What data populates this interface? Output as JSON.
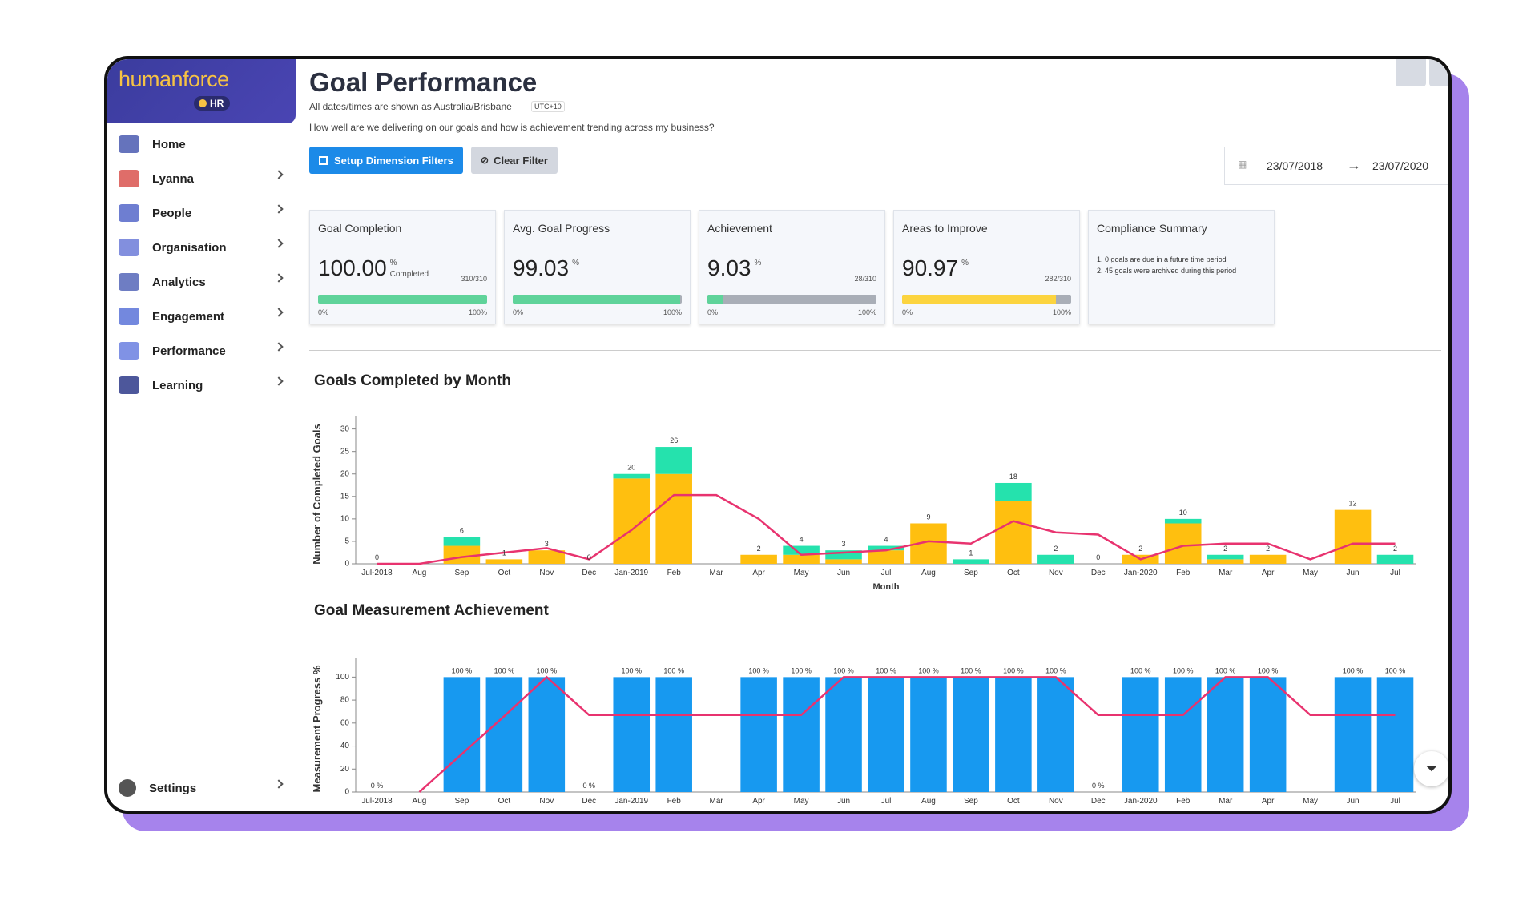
{
  "sidebar": {
    "brand": "humanforce",
    "badge": "HR",
    "nav": [
      "Home",
      "Lyanna",
      "People",
      "Organisation",
      "Analytics",
      "Engagement",
      "Performance",
      "Learning"
    ],
    "settings": "Settings"
  },
  "header": {
    "title": "Goal Performance",
    "timezone": "All dates/times are shown as Australia/Brisbane",
    "utc": "UTC+10",
    "question": "How well are we delivering on our goals and how is achievement trending across my business?",
    "buttons": [
      "Setup Dimension Filters",
      "Clear Filter"
    ],
    "date_from": "23/07/2018",
    "date_to": "23/07/2020"
  },
  "kpis": [
    {
      "title": "Goal Completion",
      "value": 100,
      "value_label": "100.00",
      "unit": "%",
      "sub": "Completed",
      "ratio": "310/310",
      "min_label": "0%",
      "max_label": "100%",
      "color": "#5fd39a"
    },
    {
      "title": "Avg. Goal Progress",
      "value": 99.03,
      "unit": "%",
      "min_label": "0%",
      "max_label": "100%",
      "color": "#5fd39a"
    },
    {
      "title": "Achievement",
      "value": 9.03,
      "unit": "%",
      "ratio": "28/310",
      "min_label": "0%",
      "max_label": "100%",
      "color": "#5fd39a"
    },
    {
      "title": "Areas to Improve",
      "value": 90.97,
      "unit": "%",
      "ratio": "282/310",
      "min_label": "0%",
      "max_label": "100%",
      "color": "#fcd43f"
    }
  ],
  "compliance": {
    "title": "Compliance Summary",
    "items": [
      "1. 0 goals are due in a future time period",
      "2. 45 goals were archived during this period"
    ]
  },
  "charts": [
    {
      "type": "bar",
      "title": "Goals Completed by Month",
      "x_label": "Month",
      "y_label": "Number of Completed Goals",
      "categories": [
        "Jul-2018",
        "Aug",
        "Sep",
        "Oct",
        "Nov",
        "Dec",
        "Jan-2019",
        "Feb",
        "Mar",
        "Apr",
        "May",
        "Jun",
        "Jul",
        "Aug",
        "Sep",
        "Oct",
        "Nov",
        "Dec",
        "Jan-2020",
        "Feb",
        "Mar",
        "Apr",
        "May",
        "Jun",
        "Jul"
      ],
      "series": [
        {
          "color": "#ffbf0f",
          "values": [
            0,
            null,
            4,
            1,
            3,
            0,
            19,
            20,
            null,
            2,
            2,
            1,
            3,
            9,
            0,
            14,
            0,
            0,
            2,
            9,
            1,
            2,
            null,
            12,
            0
          ]
        },
        {
          "color": "#25e2ad",
          "values": [
            0,
            null,
            2,
            0,
            0,
            0,
            1,
            6,
            null,
            0,
            2,
            2,
            1,
            0,
            1,
            4,
            2,
            0,
            0,
            1,
            1,
            0,
            null,
            0,
            2
          ]
        },
        {
          "type": "line",
          "color": "#e8336f",
          "values": [
            0,
            0,
            1.5,
            2.5,
            3.5,
            1,
            7.5,
            15.3,
            15.3,
            10,
            2,
            2.5,
            3,
            5,
            4.5,
            9.5,
            7,
            6.5,
            1,
            4,
            4.5,
            4.5,
            1,
            4.5,
            4.5
          ]
        }
      ],
      "totals": [
        0,
        null,
        6,
        1,
        3,
        0,
        20,
        26,
        null,
        2,
        4,
        3,
        4,
        9,
        1,
        18,
        2,
        0,
        2,
        10,
        2,
        2,
        null,
        12,
        2
      ],
      "ylim": [
        0,
        31
      ],
      "yticks": [
        0,
        5,
        10,
        15,
        20,
        25,
        30
      ]
    },
    {
      "type": "bar",
      "title": "Goal Measurement Achievement",
      "y_label": "Measurement Progress %",
      "categories": [
        "Jul-2018",
        "Aug",
        "Sep",
        "Oct",
        "Nov",
        "Dec",
        "Jan-2019",
        "Feb",
        "Mar",
        "Apr",
        "May",
        "Jun",
        "Jul",
        "Aug",
        "Sep",
        "Oct",
        "Nov",
        "Dec",
        "Jan-2020",
        "Feb",
        "Mar",
        "Apr",
        "May",
        "Jun",
        "Jul"
      ],
      "series": [
        {
          "color": "#1799f0",
          "values": [
            0,
            null,
            100,
            100,
            100,
            0,
            100,
            100,
            null,
            100,
            100,
            100,
            100,
            100,
            100,
            100,
            100,
            0,
            100,
            100,
            100,
            100,
            null,
            100,
            100
          ],
          "value_labels": [
            "0 %",
            null,
            "100 %",
            "100 %",
            "100 %",
            "0 %",
            "100 %",
            "100 %",
            null,
            "100 %",
            "100 %",
            "100 %",
            "100 %",
            "100 %",
            "100 %",
            "100 %",
            "100 %",
            "0 %",
            "100 %",
            "100 %",
            "100 %",
            "100 %",
            null,
            "100 %",
            "100 %"
          ]
        },
        {
          "type": "line",
          "color": "#e8336f",
          "values": [
            null,
            0,
            33,
            66,
            100,
            67,
            67,
            67,
            67,
            67,
            67,
            100,
            100,
            100,
            100,
            100,
            100,
            67,
            67,
            67,
            100,
            100,
            67,
            67,
            67
          ]
        }
      ],
      "ylim": [
        0,
        110
      ],
      "yticks": [
        0,
        20,
        40,
        60,
        80,
        100
      ]
    }
  ]
}
